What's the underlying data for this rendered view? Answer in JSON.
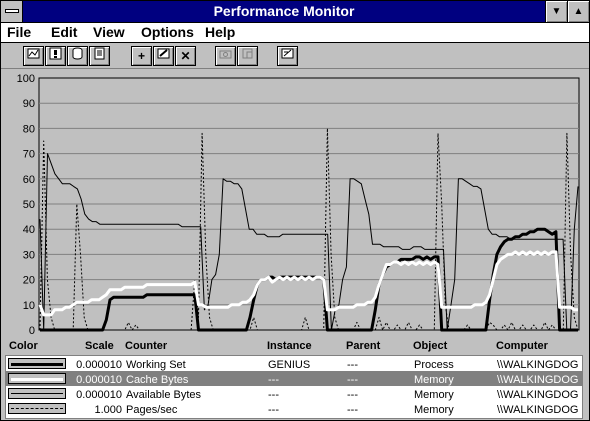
{
  "window": {
    "title": "Performance Monitor",
    "min_glyph": "▼",
    "max_glyph": "▲"
  },
  "menu": [
    {
      "label": "File"
    },
    {
      "label": "Edit"
    },
    {
      "label": "View"
    },
    {
      "label": "Options"
    },
    {
      "label": "Help"
    }
  ],
  "toolbar": {
    "add_glyph": "+",
    "delete_glyph": "✕"
  },
  "chart_data": {
    "type": "line",
    "ylim": [
      0,
      100
    ],
    "yticks": [
      "100",
      "90",
      "80",
      "70",
      "60",
      "50",
      "40",
      "30",
      "20",
      "10",
      "0"
    ],
    "grid": true,
    "background": "#c0c0c0",
    "series": [
      {
        "name": "Working Set",
        "color": "#000000",
        "stroke": "thick",
        "values": [
          0,
          0,
          0,
          0,
          0,
          0,
          0,
          0,
          0,
          0,
          0,
          0,
          0,
          0,
          0,
          0,
          0,
          0,
          4,
          12,
          13,
          13,
          13,
          13,
          13,
          13,
          13,
          13,
          13,
          14,
          14,
          14,
          14,
          14,
          14,
          14,
          14,
          14,
          14,
          14,
          14,
          14,
          14,
          0,
          0,
          0,
          0,
          0,
          0,
          0,
          0,
          0,
          0,
          0,
          0,
          0,
          0,
          5,
          12,
          18,
          20,
          20,
          21,
          21,
          20,
          21,
          21,
          21,
          21,
          21,
          21,
          21,
          21,
          21,
          21,
          21,
          21,
          20,
          0,
          0,
          0,
          0,
          0,
          0,
          0,
          0,
          0,
          0,
          0,
          0,
          0,
          8,
          18,
          22,
          25,
          26,
          27,
          27,
          28,
          28,
          28,
          28,
          29,
          29,
          28,
          29,
          28,
          29,
          29,
          0,
          0,
          0,
          0,
          0,
          0,
          0,
          0,
          0,
          0,
          0,
          0,
          0,
          12,
          22,
          30,
          33,
          35,
          36,
          36,
          37,
          37,
          38,
          38,
          39,
          39,
          40,
          40,
          40,
          39,
          38,
          39,
          0,
          0,
          0,
          0,
          0,
          0
        ]
      },
      {
        "name": "Cache Bytes",
        "color": "#ffffff",
        "stroke": "thick",
        "values": [
          10,
          6,
          6,
          6,
          8,
          8,
          8,
          9,
          9,
          10,
          11,
          11,
          11,
          11,
          12,
          12,
          12,
          13,
          14,
          16,
          16,
          16,
          16,
          17,
          17,
          17,
          17,
          17,
          17,
          18,
          18,
          18,
          18,
          18,
          18,
          18,
          18,
          18,
          18,
          18,
          18,
          18,
          19,
          10,
          10,
          9,
          9,
          9,
          9,
          9,
          9,
          9,
          10,
          10,
          10,
          11,
          11,
          12,
          14,
          18,
          20,
          20,
          21,
          19,
          20,
          21,
          20,
          21,
          20,
          21,
          20,
          21,
          20,
          21,
          20,
          21,
          21,
          20,
          8,
          8,
          8,
          9,
          9,
          9,
          9,
          9,
          10,
          10,
          10,
          11,
          11,
          13,
          18,
          22,
          26,
          26,
          27,
          27,
          26,
          27,
          26,
          27,
          26,
          27,
          26,
          27,
          26,
          27,
          26,
          9,
          9,
          9,
          9,
          9,
          9,
          9,
          9,
          9,
          10,
          10,
          10,
          11,
          14,
          20,
          26,
          28,
          29,
          30,
          30,
          31,
          30,
          31,
          30,
          31,
          30,
          31,
          30,
          31,
          30,
          31,
          31,
          9,
          9,
          9,
          9,
          8,
          8
        ]
      },
      {
        "name": "Available Bytes",
        "color": "#000000",
        "stroke": "thin",
        "values": [
          44,
          0,
          70,
          66,
          62,
          60,
          58,
          58,
          58,
          57,
          56,
          52,
          46,
          44,
          43,
          43,
          42,
          42,
          42,
          42,
          42,
          42,
          42,
          42,
          42,
          42,
          42,
          42,
          42,
          42,
          42,
          42,
          42,
          42,
          42,
          42,
          42,
          42,
          41,
          41,
          41,
          41,
          41,
          41,
          8,
          10,
          20,
          22,
          30,
          60,
          59,
          59,
          58,
          58,
          56,
          48,
          40,
          40,
          38,
          38,
          38,
          37,
          37,
          37,
          37,
          38,
          38,
          38,
          38,
          38,
          38,
          38,
          38,
          38,
          38,
          38,
          38,
          38,
          0,
          8,
          10,
          20,
          25,
          60,
          60,
          59,
          58,
          52,
          46,
          34,
          34,
          34,
          33,
          33,
          33,
          33,
          33,
          32,
          32,
          32,
          33,
          33,
          33,
          32,
          32,
          32,
          32,
          32,
          32,
          0,
          10,
          20,
          60,
          60,
          59,
          58,
          57,
          57,
          56,
          48,
          40,
          38,
          38,
          37,
          37,
          37,
          36,
          36,
          36,
          36,
          36,
          36,
          36,
          36,
          36,
          36,
          36,
          36,
          36,
          36,
          36,
          0,
          0,
          40,
          57
        ]
      },
      {
        "name": "Pages/sec",
        "color": "#000000",
        "stroke": "dotted",
        "values": [
          0,
          75,
          20,
          5,
          0,
          0,
          0,
          0,
          0,
          0,
          50,
          30,
          5,
          0,
          0,
          0,
          0,
          0,
          0,
          0,
          0,
          0,
          0,
          0,
          3,
          0,
          2,
          0,
          0,
          0,
          0,
          0,
          0,
          0,
          0,
          0,
          0,
          0,
          0,
          0,
          0,
          0,
          20,
          5,
          78,
          30,
          5,
          0,
          0,
          0,
          0,
          0,
          0,
          0,
          0,
          0,
          0,
          0,
          5,
          0,
          0,
          0,
          0,
          0,
          0,
          0,
          0,
          0,
          0,
          0,
          0,
          0,
          5,
          0,
          0,
          0,
          0,
          0,
          80,
          30,
          5,
          0,
          0,
          0,
          0,
          0,
          3,
          0,
          0,
          0,
          0,
          0,
          5,
          0,
          3,
          0,
          0,
          2,
          0,
          0,
          3,
          0,
          0,
          2,
          0,
          0,
          0,
          0,
          78,
          50,
          10,
          0,
          0,
          0,
          0,
          0,
          2,
          0,
          0,
          0,
          0,
          0,
          3,
          2,
          0,
          0,
          2,
          0,
          3,
          0,
          0,
          2,
          0,
          0,
          2,
          0,
          0,
          3,
          0,
          2,
          0,
          0,
          0,
          78,
          30,
          5,
          0
        ]
      }
    ]
  },
  "legend": {
    "headers": {
      "color": "Color",
      "scale": "Scale",
      "counter": "Counter",
      "instance": "Instance",
      "parent": "Parent",
      "object": "Object",
      "computer": "Computer"
    },
    "rows": [
      {
        "scale": "0.000010",
        "counter": "Working Set",
        "instance": "GENIUS",
        "parent": "---",
        "object": "Process",
        "computer": "\\\\WALKINGDOG"
      },
      {
        "scale": "0.000010",
        "counter": "Cache Bytes",
        "instance": "---",
        "parent": "---",
        "object": "Memory",
        "computer": "\\\\WALKINGDOG"
      },
      {
        "scale": "0.000010",
        "counter": "Available Bytes",
        "instance": "---",
        "parent": "---",
        "object": "Memory",
        "computer": "\\\\WALKINGDOG"
      },
      {
        "scale": "1.000",
        "counter": "Pages/sec",
        "instance": "---",
        "parent": "---",
        "object": "Memory",
        "computer": "\\\\WALKINGDOG"
      }
    ]
  }
}
